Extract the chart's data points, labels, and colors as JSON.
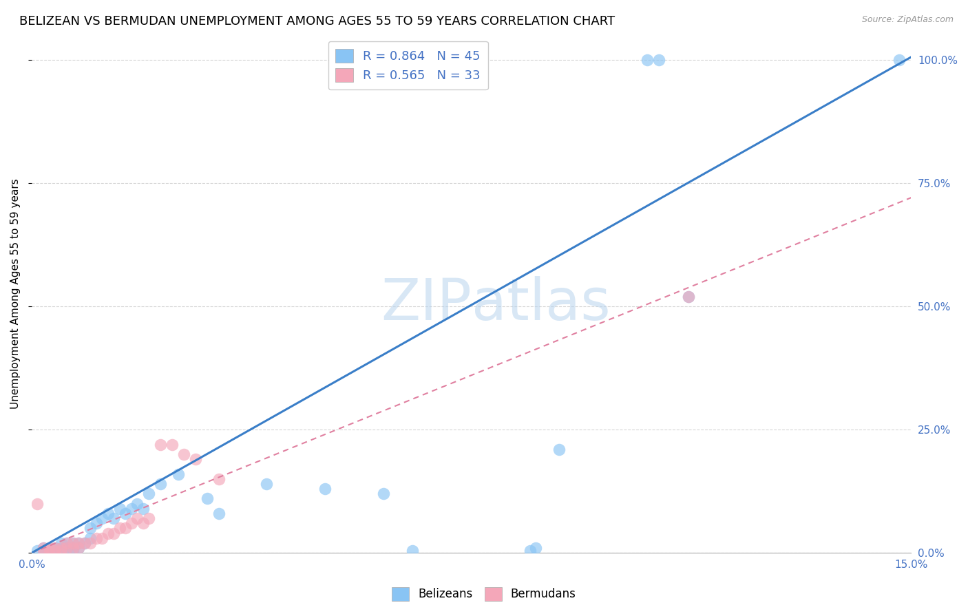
{
  "title": "BELIZEAN VS BERMUDAN UNEMPLOYMENT AMONG AGES 55 TO 59 YEARS CORRELATION CHART",
  "source": "Source: ZipAtlas.com",
  "ylabel_label": "Unemployment Among Ages 55 to 59 years",
  "xlim": [
    0.0,
    0.15
  ],
  "ylim": [
    0.0,
    1.05
  ],
  "xticks": [
    0.0,
    0.05,
    0.1,
    0.15
  ],
  "xtick_labels": [
    "0.0%",
    "",
    "",
    "15.0%"
  ],
  "ytick_labels": [
    "0.0%",
    "25.0%",
    "50.0%",
    "75.0%",
    "100.0%"
  ],
  "yticks": [
    0.0,
    0.25,
    0.5,
    0.75,
    1.0
  ],
  "belizean_color": "#89c4f4",
  "bermudan_color": "#f4a7b9",
  "belizean_R": 0.864,
  "belizean_N": 45,
  "bermudan_R": 0.565,
  "bermudan_N": 33,
  "legend_text_color": "#4472c4",
  "belizean_line_slope": 6.7,
  "belizean_line_intercept": 0.0,
  "bermudan_line_slope": 4.8,
  "bermudan_line_intercept": 0.0,
  "belizean_scatter": [
    [
      0.001,
      0.005
    ],
    [
      0.002,
      0.005
    ],
    [
      0.002,
      0.01
    ],
    [
      0.003,
      0.005
    ],
    [
      0.003,
      0.01
    ],
    [
      0.004,
      0.005
    ],
    [
      0.004,
      0.01
    ],
    [
      0.005,
      0.005
    ],
    [
      0.005,
      0.01
    ],
    [
      0.005,
      0.02
    ],
    [
      0.006,
      0.01
    ],
    [
      0.006,
      0.02
    ],
    [
      0.007,
      0.005
    ],
    [
      0.007,
      0.01
    ],
    [
      0.007,
      0.02
    ],
    [
      0.008,
      0.01
    ],
    [
      0.008,
      0.02
    ],
    [
      0.009,
      0.02
    ],
    [
      0.01,
      0.03
    ],
    [
      0.01,
      0.05
    ],
    [
      0.011,
      0.06
    ],
    [
      0.012,
      0.07
    ],
    [
      0.013,
      0.08
    ],
    [
      0.014,
      0.07
    ],
    [
      0.015,
      0.09
    ],
    [
      0.016,
      0.08
    ],
    [
      0.017,
      0.09
    ],
    [
      0.018,
      0.1
    ],
    [
      0.019,
      0.09
    ],
    [
      0.02,
      0.12
    ],
    [
      0.022,
      0.14
    ],
    [
      0.025,
      0.16
    ],
    [
      0.03,
      0.11
    ],
    [
      0.032,
      0.08
    ],
    [
      0.04,
      0.14
    ],
    [
      0.05,
      0.13
    ],
    [
      0.06,
      0.12
    ],
    [
      0.065,
      0.005
    ],
    [
      0.085,
      0.005
    ],
    [
      0.086,
      0.01
    ],
    [
      0.105,
      1.0
    ],
    [
      0.107,
      1.0
    ],
    [
      0.112,
      0.52
    ],
    [
      0.148,
      1.0
    ],
    [
      0.09,
      0.21
    ]
  ],
  "bermudan_scatter": [
    [
      0.001,
      0.1
    ],
    [
      0.002,
      0.005
    ],
    [
      0.002,
      0.01
    ],
    [
      0.003,
      0.005
    ],
    [
      0.003,
      0.01
    ],
    [
      0.004,
      0.005
    ],
    [
      0.004,
      0.01
    ],
    [
      0.005,
      0.005
    ],
    [
      0.005,
      0.01
    ],
    [
      0.006,
      0.01
    ],
    [
      0.006,
      0.02
    ],
    [
      0.007,
      0.01
    ],
    [
      0.007,
      0.02
    ],
    [
      0.008,
      0.01
    ],
    [
      0.008,
      0.02
    ],
    [
      0.009,
      0.02
    ],
    [
      0.01,
      0.02
    ],
    [
      0.011,
      0.03
    ],
    [
      0.012,
      0.03
    ],
    [
      0.013,
      0.04
    ],
    [
      0.014,
      0.04
    ],
    [
      0.015,
      0.05
    ],
    [
      0.016,
      0.05
    ],
    [
      0.017,
      0.06
    ],
    [
      0.018,
      0.07
    ],
    [
      0.019,
      0.06
    ],
    [
      0.02,
      0.07
    ],
    [
      0.022,
      0.22
    ],
    [
      0.024,
      0.22
    ],
    [
      0.026,
      0.2
    ],
    [
      0.028,
      0.19
    ],
    [
      0.032,
      0.15
    ],
    [
      0.112,
      0.52
    ]
  ],
  "belizean_line_color": "#3a7ec8",
  "bermudan_line_color": "#e080a0",
  "grid_color": "#cccccc",
  "background_color": "#ffffff",
  "right_axis_color": "#4472c4",
  "title_fontsize": 13,
  "axis_fontsize": 11,
  "tick_fontsize": 11
}
